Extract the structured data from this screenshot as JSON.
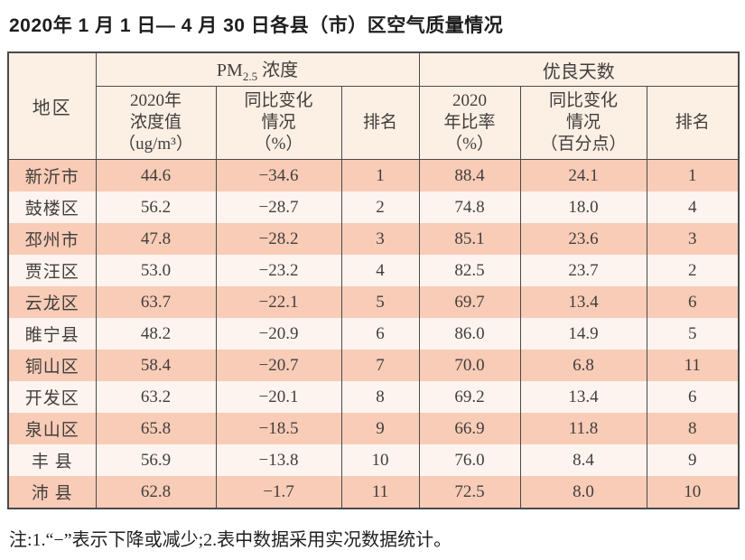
{
  "page": {
    "title": "2020年 1 月 1 日— 4 月 30 日各县（市）区空气质量情况",
    "footnote": "注:1.“−”表示下降或减少;2.表中数据采用实况数据统计。"
  },
  "colors": {
    "odd_row_bg": "#f8ccb7",
    "even_row_bg": "#fdf4ef",
    "header_bg": "#fcefe4",
    "border": "#4a4a4a",
    "text": "#413e3c"
  },
  "chart_data": {
    "type": "table",
    "title": "2020年 1 月 1 日— 4 月 30 日各县（市）区空气质量情况",
    "headers": {
      "region": "地区",
      "group_pm": {
        "prefix": "PM",
        "subscript": "2.5",
        "suffix": " 浓度"
      },
      "group_good": "优良天数",
      "sub": {
        "pm_value": "2020年\n浓度值\n（ug/m³）",
        "pm_change": "同比变化\n情况\n（%）",
        "pm_rank": "排名",
        "good_rate": "2020\n年比率\n（%）",
        "good_change": "同比变化\n情况\n（百分点）",
        "good_rank": "排名"
      }
    },
    "rows": [
      {
        "region": "新沂市",
        "pm_value": "44.6",
        "pm_change": "−34.6",
        "pm_rank": "1",
        "good_rate": "88.4",
        "good_change": "24.1",
        "good_rank": "1"
      },
      {
        "region": "鼓楼区",
        "pm_value": "56.2",
        "pm_change": "−28.7",
        "pm_rank": "2",
        "good_rate": "74.8",
        "good_change": "18.0",
        "good_rank": "4"
      },
      {
        "region": "邳州市",
        "pm_value": "47.8",
        "pm_change": "−28.2",
        "pm_rank": "3",
        "good_rate": "85.1",
        "good_change": "23.6",
        "good_rank": "3"
      },
      {
        "region": "贾汪区",
        "pm_value": "53.0",
        "pm_change": "−23.2",
        "pm_rank": "4",
        "good_rate": "82.5",
        "good_change": "23.7",
        "good_rank": "2"
      },
      {
        "region": "云龙区",
        "pm_value": "63.7",
        "pm_change": "−22.1",
        "pm_rank": "5",
        "good_rate": "69.7",
        "good_change": "13.4",
        "good_rank": "6"
      },
      {
        "region": "睢宁县",
        "pm_value": "48.2",
        "pm_change": "−20.9",
        "pm_rank": "6",
        "good_rate": "86.0",
        "good_change": "14.9",
        "good_rank": "5"
      },
      {
        "region": "铜山区",
        "pm_value": "58.4",
        "pm_change": "−20.7",
        "pm_rank": "7",
        "good_rate": "70.0",
        "good_change": "6.8",
        "good_rank": "11"
      },
      {
        "region": "开发区",
        "pm_value": "63.2",
        "pm_change": "−20.1",
        "pm_rank": "8",
        "good_rate": "69.2",
        "good_change": "13.4",
        "good_rank": "6"
      },
      {
        "region": "泉山区",
        "pm_value": "65.8",
        "pm_change": "−18.5",
        "pm_rank": "9",
        "good_rate": "66.9",
        "good_change": "11.8",
        "good_rank": "8"
      },
      {
        "region": "丰 县",
        "pm_value": "56.9",
        "pm_change": "−13.8",
        "pm_rank": "10",
        "good_rate": "76.0",
        "good_change": "8.4",
        "good_rank": "9"
      },
      {
        "region": "沛 县",
        "pm_value": "62.8",
        "pm_change": "−1.7",
        "pm_rank": "11",
        "good_rate": "72.5",
        "good_change": "8.0",
        "good_rank": "10"
      }
    ]
  }
}
